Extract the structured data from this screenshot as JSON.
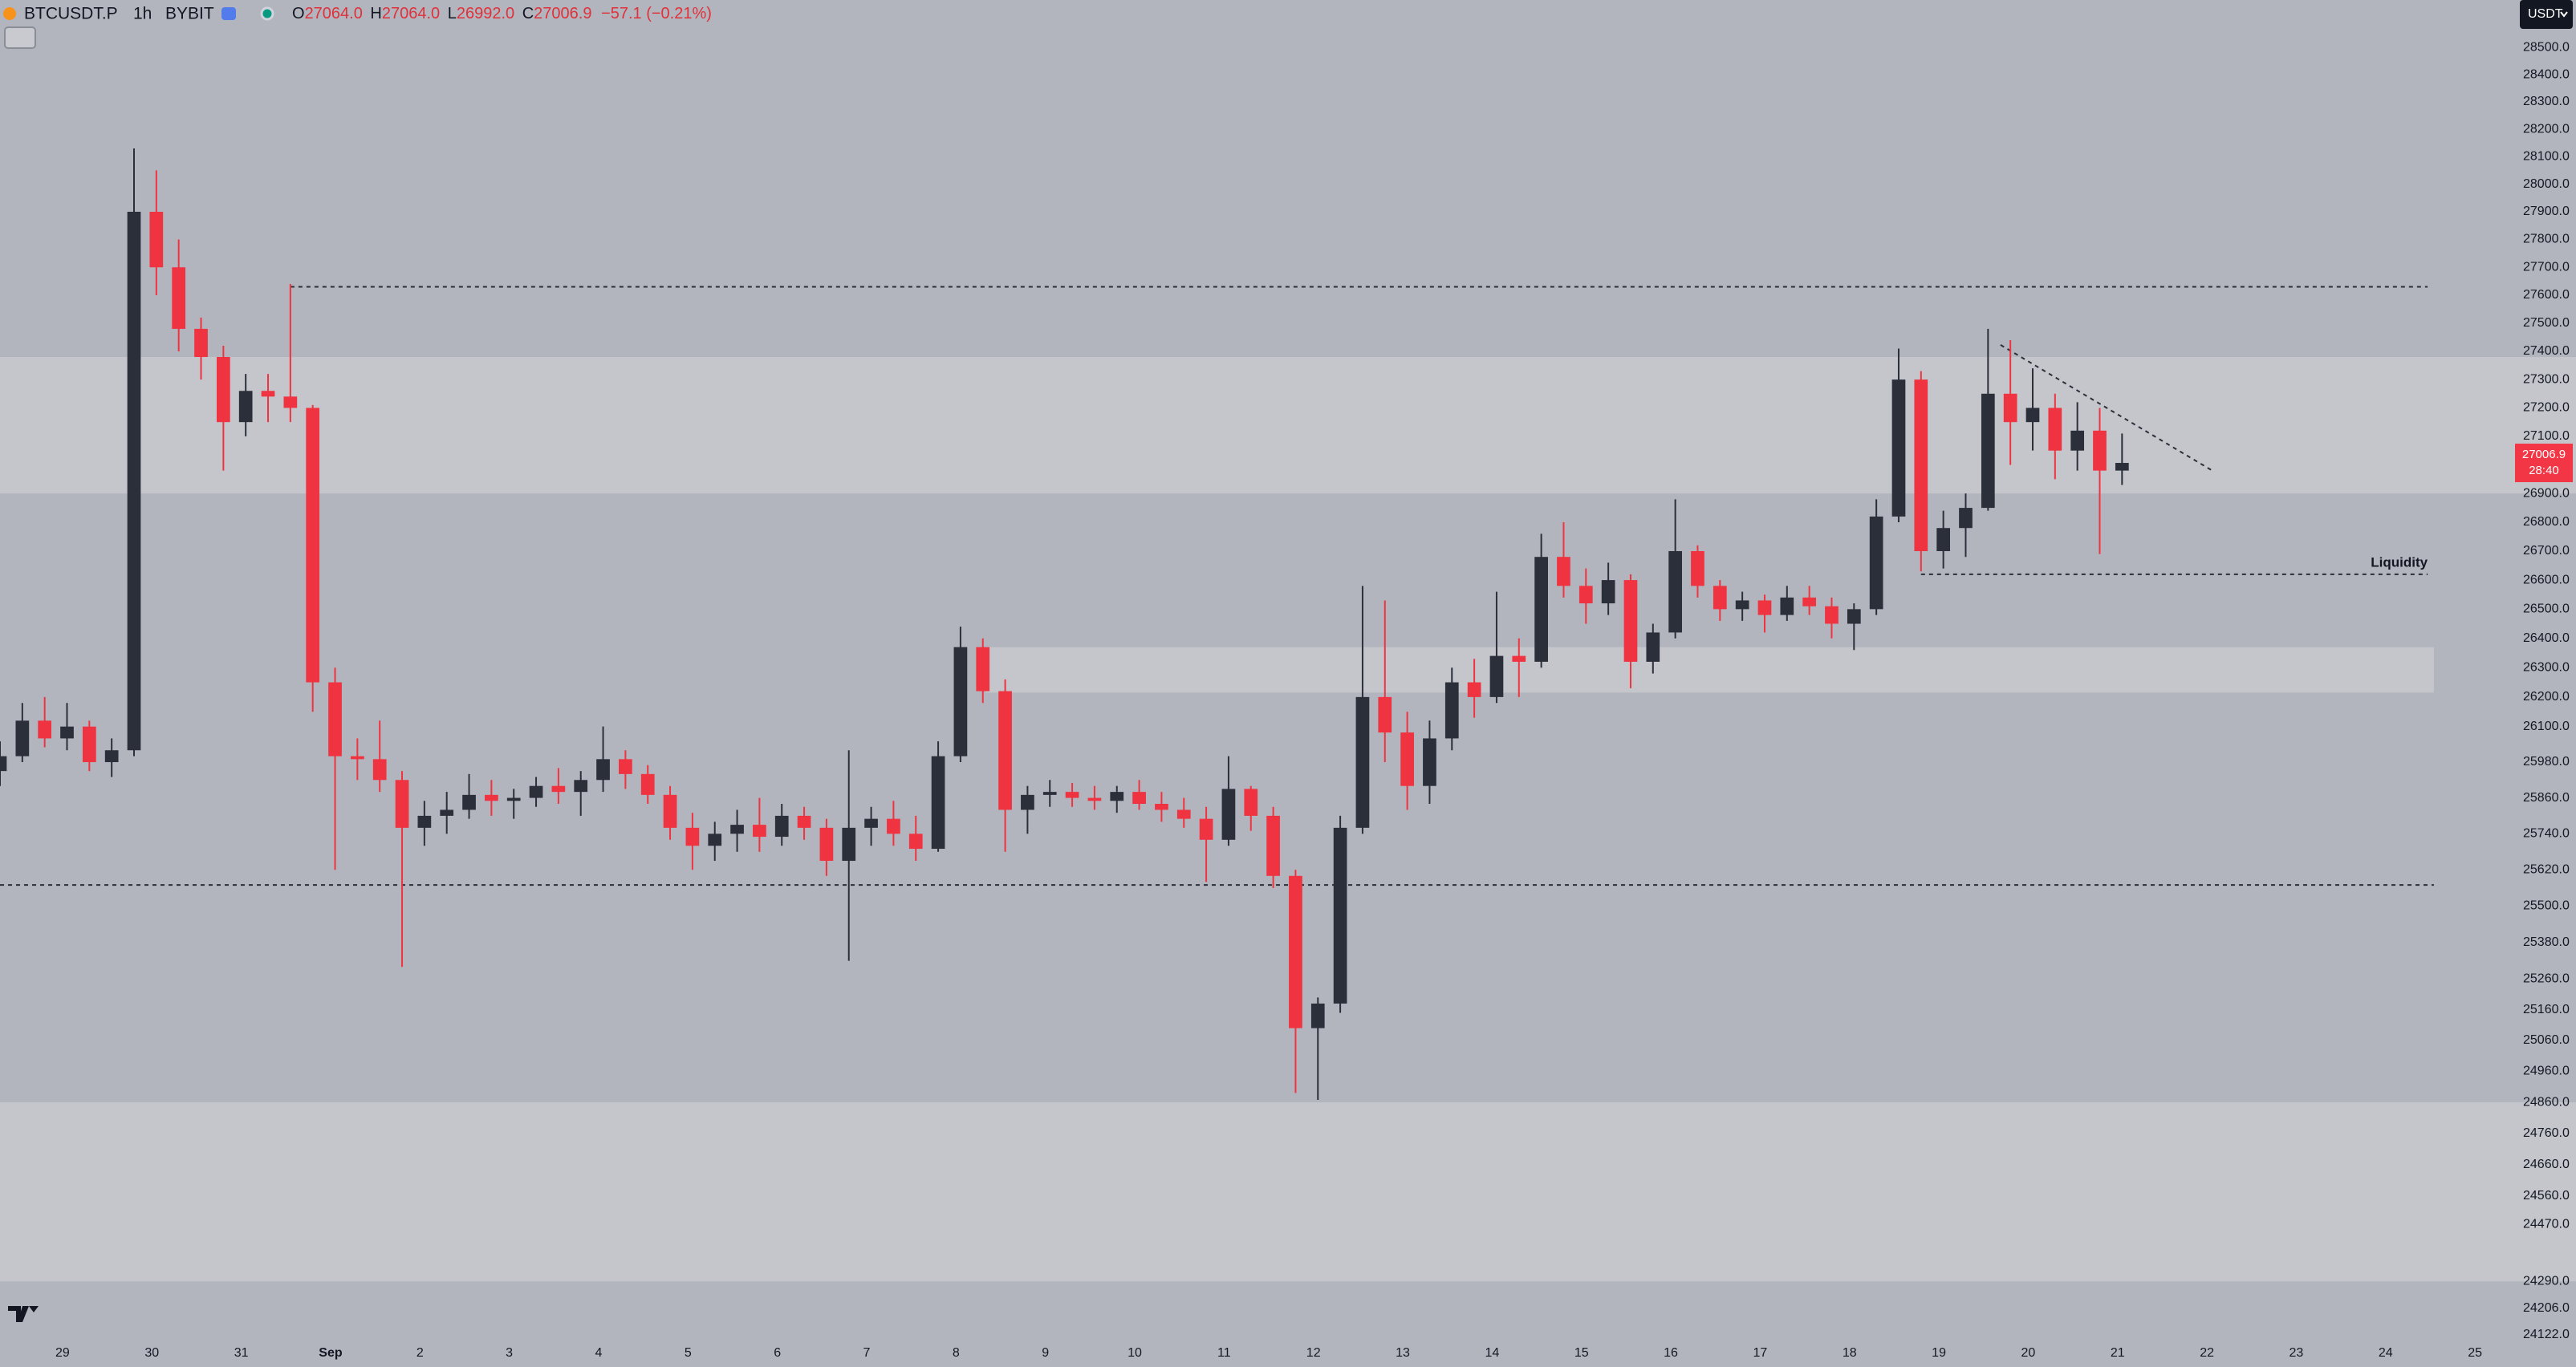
{
  "header": {
    "symbol": "BTCUSDT.P",
    "interval": "1h",
    "exchange": "BYBIT",
    "ohlc": [
      {
        "key": "O",
        "value": "27064.0"
      },
      {
        "key": "H",
        "value": "27064.0"
      },
      {
        "key": "L",
        "value": "26992.0"
      },
      {
        "key": "C",
        "value": "27006.9"
      }
    ],
    "change": "−57.1 (−0.21%)"
  },
  "chart_data": {
    "type": "candlestick",
    "currency": "USDT",
    "countdown": "28:40",
    "log_scale": true,
    "grid": false,
    "up_color": "#2b2f3a",
    "down_color": "#ef3340",
    "xlim": [
      -0.7,
      27.43
    ],
    "xticks": [
      {
        "value": 0,
        "label": "29"
      },
      {
        "value": 1,
        "label": "30"
      },
      {
        "value": 2,
        "label": "31"
      },
      {
        "value": 3,
        "label": "Sep"
      },
      {
        "value": 4,
        "label": "2"
      },
      {
        "value": 5,
        "label": "3"
      },
      {
        "value": 6,
        "label": "4"
      },
      {
        "value": 7,
        "label": "5"
      },
      {
        "value": 8,
        "label": "6"
      },
      {
        "value": 9,
        "label": "7"
      },
      {
        "value": 10,
        "label": "8"
      },
      {
        "value": 11,
        "label": "9"
      },
      {
        "value": 12,
        "label": "10"
      },
      {
        "value": 13,
        "label": "11"
      },
      {
        "value": 14,
        "label": "12"
      },
      {
        "value": 15,
        "label": "13"
      },
      {
        "value": 16,
        "label": "14"
      },
      {
        "value": 17,
        "label": "15"
      },
      {
        "value": 18,
        "label": "16"
      },
      {
        "value": 19,
        "label": "17"
      },
      {
        "value": 20,
        "label": "18"
      },
      {
        "value": 21,
        "label": "19"
      },
      {
        "value": 22,
        "label": "20"
      },
      {
        "value": 23,
        "label": "21"
      },
      {
        "value": 24,
        "label": "22"
      },
      {
        "value": 25,
        "label": "23"
      },
      {
        "value": 26,
        "label": "24"
      },
      {
        "value": 27,
        "label": "25"
      }
    ],
    "ylim": [
      24112,
      28676
    ],
    "yticks": [
      {
        "value": 28500,
        "label": "28500.0"
      },
      {
        "value": 28400,
        "label": "28400.0"
      },
      {
        "value": 28300,
        "label": "28300.0"
      },
      {
        "value": 28200,
        "label": "28200.0"
      },
      {
        "value": 28100,
        "label": "28100.0"
      },
      {
        "value": 28000,
        "label": "28000.0"
      },
      {
        "value": 27900,
        "label": "27900.0"
      },
      {
        "value": 27800,
        "label": "27800.0"
      },
      {
        "value": 27700,
        "label": "27700.0"
      },
      {
        "value": 27600,
        "label": "27600.0"
      },
      {
        "value": 27500,
        "label": "27500.0"
      },
      {
        "value": 27400,
        "label": "27400.0"
      },
      {
        "value": 27300,
        "label": "27300.0"
      },
      {
        "value": 27200,
        "label": "27200.0"
      },
      {
        "value": 27100,
        "label": "27100.0"
      },
      {
        "value": 26900,
        "label": "26900.0"
      },
      {
        "value": 26800,
        "label": "26800.0"
      },
      {
        "value": 26700,
        "label": "26700.0"
      },
      {
        "value": 26600,
        "label": "26600.0"
      },
      {
        "value": 26500,
        "label": "26500.0"
      },
      {
        "value": 26400,
        "label": "26400.0"
      },
      {
        "value": 26300,
        "label": "26300.0"
      },
      {
        "value": 26200,
        "label": "26200.0"
      },
      {
        "value": 26100,
        "label": "26100.0"
      },
      {
        "value": 25980,
        "label": "25980.0"
      },
      {
        "value": 25860,
        "label": "25860.0"
      },
      {
        "value": 25740,
        "label": "25740.0"
      },
      {
        "value": 25620,
        "label": "25620.0"
      },
      {
        "value": 25500,
        "label": "25500.0"
      },
      {
        "value": 25380,
        "label": "25380.0"
      },
      {
        "value": 25260,
        "label": "25260.0"
      },
      {
        "value": 25160,
        "label": "25160.0"
      },
      {
        "value": 25060,
        "label": "25060.0"
      },
      {
        "value": 24960,
        "label": "24960.0"
      },
      {
        "value": 24860,
        "label": "24860.0"
      },
      {
        "value": 24760,
        "label": "24760.0"
      },
      {
        "value": 24660,
        "label": "24660.0"
      },
      {
        "value": 24560,
        "label": "24560.0"
      },
      {
        "value": 24470,
        "label": "24470.0"
      },
      {
        "value": 24290,
        "label": "24290.0"
      },
      {
        "value": 24206,
        "label": "24206.0"
      },
      {
        "value": 24122,
        "label": "24122.0"
      }
    ],
    "x": [
      -0.7,
      -0.45,
      -0.2,
      0.05,
      0.3,
      0.55,
      0.8,
      1.05,
      1.3,
      1.55,
      1.8,
      2.05,
      2.3,
      2.55,
      2.8,
      3.05,
      3.3,
      3.55,
      3.8,
      4.05,
      4.3,
      4.55,
      4.8,
      5.05,
      5.3,
      5.55,
      5.8,
      6.05,
      6.3,
      6.55,
      6.8,
      7.05,
      7.3,
      7.55,
      7.8,
      8.05,
      8.3,
      8.55,
      8.8,
      9.05,
      9.3,
      9.55,
      9.8,
      10.05,
      10.3,
      10.55,
      10.8,
      11.05,
      11.3,
      11.55,
      11.8,
      12.05,
      12.3,
      12.55,
      12.8,
      13.05,
      13.3,
      13.55,
      13.8,
      14.05,
      14.3,
      14.55,
      14.8,
      15.05,
      15.3,
      15.55,
      15.8,
      16.05,
      16.3,
      16.55,
      16.8,
      17.05,
      17.3,
      17.55,
      17.8,
      18.05,
      18.3,
      18.55,
      18.8,
      19.05,
      19.3,
      19.55,
      19.8,
      20.05,
      20.3,
      20.55,
      20.8,
      21.05,
      21.3,
      21.55,
      21.8,
      22.05,
      22.3,
      22.55,
      22.8,
      23.05
    ],
    "open": [
      25950,
      26000,
      26120,
      26060,
      26100,
      25980,
      26020,
      27900,
      27700,
      27480,
      27380,
      27150,
      27260,
      27240,
      27200,
      26250,
      26000,
      25990,
      25920,
      25760,
      25800,
      25820,
      25870,
      25850,
      25860,
      25900,
      25880,
      25920,
      25990,
      25940,
      25870,
      25760,
      25700,
      25740,
      25770,
      25730,
      25800,
      25760,
      25650,
      25760,
      25790,
      25740,
      25690,
      26000,
      26370,
      26220,
      25820,
      25870,
      25880,
      25860,
      25850,
      25880,
      25840,
      25820,
      25790,
      25720,
      25890,
      25800,
      25600,
      25100,
      25180,
      25760,
      26200,
      26080,
      25900,
      26060,
      26250,
      26200,
      26340,
      26320,
      26680,
      26580,
      26520,
      26600,
      26320,
      26420,
      26700,
      26580,
      26500,
      26530,
      26480,
      26540,
      26510,
      26450,
      26500,
      26820,
      27300,
      26700,
      26780,
      26850,
      27250,
      27150,
      27200,
      27050,
      27120,
      26980
    ],
    "high": [
      26050,
      26180,
      26200,
      26180,
      26120,
      26060,
      28130,
      28050,
      27800,
      27520,
      27420,
      27320,
      27320,
      27640,
      27210,
      26300,
      26060,
      26120,
      25950,
      25850,
      25880,
      25940,
      25920,
      25890,
      25930,
      25960,
      25950,
      26100,
      26020,
      25970,
      25900,
      25810,
      25780,
      25820,
      25860,
      25840,
      25830,
      25790,
      26020,
      25830,
      25850,
      25800,
      26050,
      26440,
      26400,
      26260,
      25900,
      25920,
      25910,
      25900,
      25900,
      25920,
      25880,
      25860,
      25830,
      26000,
      25900,
      25830,
      25620,
      25200,
      25800,
      26580,
      26530,
      26150,
      26120,
      26300,
      26330,
      26560,
      26400,
      26760,
      26800,
      26640,
      26660,
      26620,
      26450,
      26880,
      26720,
      26600,
      26560,
      26550,
      26580,
      26580,
      26540,
      26520,
      26880,
      27410,
      27330,
      26840,
      26900,
      27480,
      27440,
      27340,
      27250,
      27220,
      27200,
      27110
    ],
    "low": [
      25900,
      25980,
      26030,
      26020,
      25950,
      25930,
      26000,
      27600,
      27400,
      27300,
      26980,
      27100,
      27150,
      27150,
      26150,
      25620,
      25920,
      25880,
      25300,
      25700,
      25740,
      25790,
      25800,
      25790,
      25830,
      25840,
      25800,
      25880,
      25890,
      25840,
      25720,
      25620,
      25650,
      25680,
      25680,
      25700,
      25720,
      25600,
      25320,
      25700,
      25700,
      25650,
      25680,
      25980,
      26180,
      25680,
      25740,
      25830,
      25830,
      25820,
      25810,
      25820,
      25780,
      25760,
      25580,
      25700,
      25750,
      25560,
      24890,
      24868,
      25150,
      25740,
      25980,
      25820,
      25840,
      26020,
      26130,
      26180,
      26200,
      26300,
      26540,
      26450,
      26480,
      26230,
      26280,
      26400,
      26540,
      26460,
      26460,
      26420,
      26460,
      26480,
      26400,
      26360,
      26480,
      26800,
      26630,
      26640,
      26680,
      26840,
      27000,
      27050,
      26950,
      26980,
      26690,
      26930
    ],
    "close": [
      26000,
      26120,
      26060,
      26100,
      25980,
      26020,
      27900,
      27700,
      27480,
      27380,
      27150,
      27260,
      27240,
      27200,
      26250,
      26000,
      25990,
      25920,
      25760,
      25800,
      25820,
      25870,
      25850,
      25860,
      25900,
      25880,
      25920,
      25990,
      25940,
      25870,
      25760,
      25700,
      25740,
      25770,
      25730,
      25800,
      25760,
      25650,
      25760,
      25790,
      25740,
      25690,
      26000,
      26370,
      26220,
      25820,
      25870,
      25880,
      25860,
      25850,
      25880,
      25840,
      25820,
      25790,
      25720,
      25890,
      25800,
      25600,
      25100,
      25180,
      25760,
      26200,
      26080,
      25900,
      26060,
      26250,
      26200,
      26340,
      26320,
      26680,
      26580,
      26520,
      26600,
      26320,
      26420,
      26700,
      26580,
      26500,
      26530,
      26480,
      26540,
      26510,
      26450,
      26500,
      26820,
      27300,
      26700,
      26780,
      26850,
      27250,
      27150,
      27200,
      27050,
      27120,
      26980,
      27006.9
    ],
    "zones": [
      {
        "low": 26900,
        "high": 27380
      },
      {
        "low": 26215,
        "high": 26370,
        "x": [
          10.33,
          26.54
        ]
      },
      {
        "low": 24290,
        "high": 24860
      }
    ],
    "levels": [
      {
        "value": 27630,
        "x": [
          2.55,
          26.47
        ]
      },
      {
        "value": 25570,
        "x": [
          -0.7,
          26.54
        ]
      },
      {
        "value": 26620,
        "x": [
          20.8,
          26.47
        ],
        "label": "Liquidity"
      }
    ],
    "trendline": {
      "x": [
        21.69,
        24.06
      ],
      "y": [
        27423,
        26980
      ]
    }
  }
}
